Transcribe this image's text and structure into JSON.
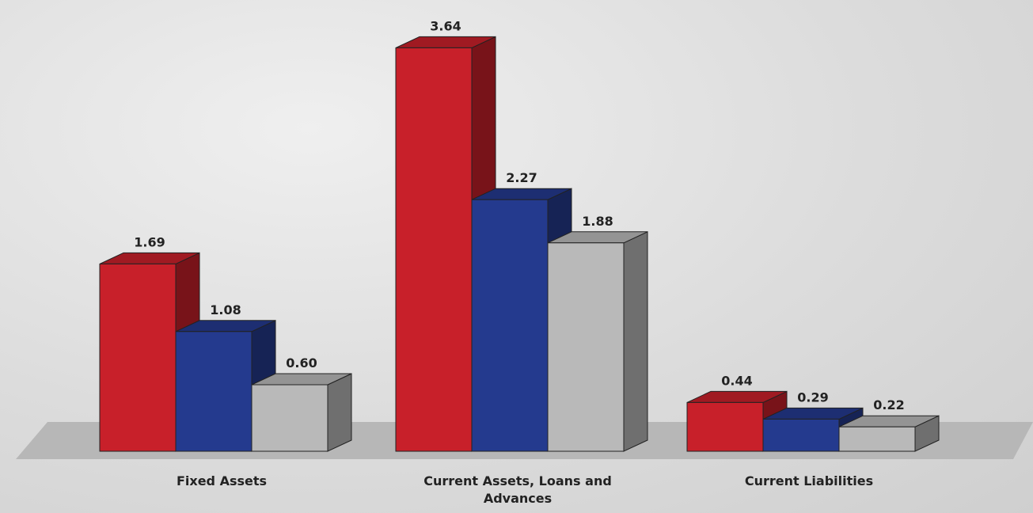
{
  "chart_data": {
    "type": "bar3d",
    "categories": [
      "Fixed Assets",
      "Current Assets, Loans and Advances",
      "Current Liabilities"
    ],
    "series": [
      {
        "color": "#c8202a",
        "values": [
          1.69,
          3.64,
          0.44
        ],
        "value_labels": [
          "1.69",
          "3.64",
          "0.44"
        ]
      },
      {
        "color": "#243a8e",
        "values": [
          1.08,
          2.27,
          0.29
        ],
        "value_labels": [
          "1.08",
          "2.27",
          "0.29"
        ]
      },
      {
        "color": "#b9b9b9",
        "values": [
          0.6,
          1.88,
          0.22
        ],
        "value_labels": [
          "0.60",
          "1.88",
          "0.22"
        ]
      }
    ]
  }
}
